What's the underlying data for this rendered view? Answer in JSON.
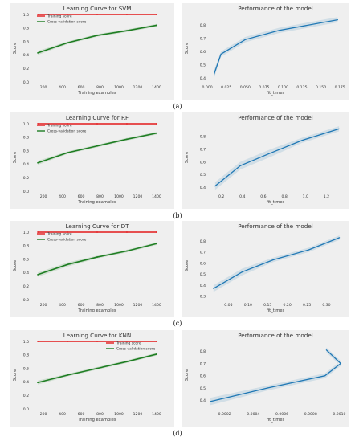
{
  "panels": [
    {
      "caption": "(a)",
      "learning": {
        "type": "line",
        "title": "Learning Curve for SVM",
        "xlabel": "Training examples",
        "ylabel": "Score",
        "xlim": [
          80,
          1460
        ],
        "ylim": [
          0.0,
          1.0
        ],
        "xticks": [
          200,
          400,
          600,
          800,
          1000,
          1200,
          1400
        ],
        "yticks": [
          0.0,
          0.2,
          0.4,
          0.6,
          0.8,
          1.0
        ],
        "legend": "top-left",
        "legend_entries": [
          "Training score",
          "Cross-validation score"
        ],
        "series": [
          {
            "name": "Training score",
            "color": "#e31a1c",
            "x": [
              140,
              455,
              770,
              1085,
              1400
            ],
            "values": [
              1.0,
              1.0,
              1.0,
              1.0,
              1.0
            ],
            "band": [
              0.0,
              0.0,
              0.0,
              0.0,
              0.0
            ]
          },
          {
            "name": "Cross-validation score",
            "color": "#1e7d22",
            "x": [
              140,
              455,
              770,
              1085,
              1400
            ],
            "values": [
              0.43,
              0.58,
              0.69,
              0.76,
              0.84
            ],
            "band": [
              0.03,
              0.02,
              0.02,
              0.02,
              0.02
            ]
          }
        ]
      },
      "performance": {
        "type": "line",
        "title": "Performance of the model",
        "xlabel": "fit_times",
        "ylabel": "Score",
        "xlim": [
          0.002,
          0.178
        ],
        "ylim": [
          0.37,
          0.88
        ],
        "xticks": [
          0.0,
          0.025,
          0.05,
          0.075,
          0.1,
          0.125,
          0.15,
          0.175
        ],
        "xtick_labels": [
          "0.000",
          "0.025",
          "0.050",
          "0.075",
          "0.100",
          "0.125",
          "0.150",
          "0.175"
        ],
        "yticks": [
          0.4,
          0.5,
          0.6,
          0.7,
          0.8
        ],
        "series": [
          {
            "color": "#1f77b4",
            "x": [
              0.009,
              0.018,
              0.05,
              0.095,
              0.172
            ],
            "values": [
              0.43,
              0.58,
              0.69,
              0.76,
              0.84
            ],
            "band": [
              0.03,
              0.02,
              0.02,
              0.02,
              0.02
            ]
          }
        ]
      }
    },
    {
      "caption": "(b)",
      "learning": {
        "type": "line",
        "title": "Learning Curve for RF",
        "xlabel": "Training examples",
        "ylabel": "Score",
        "xlim": [
          80,
          1460
        ],
        "ylim": [
          0.0,
          1.0
        ],
        "xticks": [
          200,
          400,
          600,
          800,
          1000,
          1200,
          1400
        ],
        "yticks": [
          0.0,
          0.2,
          0.4,
          0.6,
          0.8,
          1.0
        ],
        "legend": "top-left",
        "legend_entries": [
          "Training score",
          "Cross-validation score"
        ],
        "series": [
          {
            "name": "Training score",
            "color": "#e31a1c",
            "x": [
              140,
              455,
              770,
              1085,
              1400
            ],
            "values": [
              1.0,
              1.0,
              1.0,
              1.0,
              1.0
            ],
            "band": [
              0.0,
              0.0,
              0.0,
              0.0,
              0.0
            ]
          },
          {
            "name": "Cross-validation score",
            "color": "#1e7d22",
            "x": [
              140,
              455,
              770,
              1085,
              1400
            ],
            "values": [
              0.42,
              0.57,
              0.67,
              0.77,
              0.86
            ],
            "band": [
              0.03,
              0.02,
              0.02,
              0.02,
              0.02
            ]
          }
        ]
      },
      "performance": {
        "type": "line",
        "title": "Performance of the model",
        "xlabel": "fit_times",
        "ylabel": "Score",
        "xlim": [
          0.08,
          1.35
        ],
        "ylim": [
          0.37,
          0.9
        ],
        "xticks": [
          0.2,
          0.4,
          0.6,
          0.8,
          1.0,
          1.2
        ],
        "xtick_labels": [
          "0.2",
          "0.4",
          "0.6",
          "0.8",
          "1.0",
          "1.2"
        ],
        "yticks": [
          0.4,
          0.5,
          0.6,
          0.7,
          0.8
        ],
        "series": [
          {
            "color": "#1f77b4",
            "x": [
              0.14,
              0.38,
              0.67,
              0.97,
              1.32
            ],
            "values": [
              0.41,
              0.57,
              0.67,
              0.77,
              0.86
            ],
            "band": [
              0.03,
              0.03,
              0.03,
              0.02,
              0.02
            ]
          }
        ]
      }
    },
    {
      "caption": "(c)",
      "learning": {
        "type": "line",
        "title": "Learning Curve for DT",
        "xlabel": "Training examples",
        "ylabel": "Score",
        "xlim": [
          80,
          1460
        ],
        "ylim": [
          0.0,
          1.0
        ],
        "xticks": [
          200,
          400,
          600,
          800,
          1000,
          1200,
          1400
        ],
        "yticks": [
          0.0,
          0.2,
          0.4,
          0.6,
          0.8,
          1.0
        ],
        "legend": "top-left",
        "legend_entries": [
          "Training score",
          "Cross-validation score"
        ],
        "series": [
          {
            "name": "Training score",
            "color": "#e31a1c",
            "x": [
              140,
              455,
              770,
              1085,
              1400
            ],
            "values": [
              1.0,
              1.0,
              1.0,
              1.0,
              1.0
            ],
            "band": [
              0.0,
              0.0,
              0.0,
              0.0,
              0.0
            ]
          },
          {
            "name": "Cross-validation score",
            "color": "#1e7d22",
            "x": [
              140,
              455,
              770,
              1085,
              1400
            ],
            "values": [
              0.37,
              0.52,
              0.63,
              0.72,
              0.83
            ],
            "band": [
              0.03,
              0.03,
              0.02,
              0.02,
              0.02
            ]
          }
        ]
      },
      "performance": {
        "type": "line",
        "title": "Performance of the model",
        "xlabel": "fit_times",
        "ylabel": "Score",
        "xlim": [
          0.0,
          0.34
        ],
        "ylim": [
          0.27,
          0.88
        ],
        "xticks": [
          0.05,
          0.1,
          0.15,
          0.2,
          0.25,
          0.3
        ],
        "xtick_labels": [
          "0.05",
          "0.10",
          "0.15",
          "0.20",
          "0.25",
          "0.30"
        ],
        "yticks": [
          0.3,
          0.4,
          0.5,
          0.6,
          0.7,
          0.8
        ],
        "series": [
          {
            "color": "#1f77b4",
            "x": [
              0.012,
              0.085,
              0.165,
              0.255,
              0.333
            ],
            "values": [
              0.37,
              0.52,
              0.63,
              0.72,
              0.83
            ],
            "band": [
              0.03,
              0.03,
              0.02,
              0.02,
              0.02
            ]
          }
        ]
      }
    },
    {
      "caption": "(d)",
      "learning": {
        "type": "line",
        "title": "Learning Curve for KNN",
        "xlabel": "Training examples",
        "ylabel": "Score",
        "xlim": [
          80,
          1460
        ],
        "ylim": [
          0.0,
          1.0
        ],
        "xticks": [
          200,
          400,
          600,
          800,
          1000,
          1200,
          1400
        ],
        "yticks": [
          0.0,
          0.2,
          0.4,
          0.6,
          0.8,
          1.0
        ],
        "legend": "top-right",
        "legend_entries": [
          "Training score",
          "Cross-validation score"
        ],
        "series": [
          {
            "name": "Training score",
            "color": "#e31a1c",
            "x": [
              140,
              455,
              770,
              1085,
              1400
            ],
            "values": [
              1.0,
              1.0,
              1.0,
              1.0,
              1.0
            ],
            "band": [
              0.0,
              0.0,
              0.0,
              0.0,
              0.0
            ]
          },
          {
            "name": "Cross-validation score",
            "color": "#1e7d22",
            "x": [
              140,
              455,
              770,
              1085,
              1400
            ],
            "values": [
              0.39,
              0.5,
              0.6,
              0.7,
              0.81
            ],
            "band": [
              0.03,
              0.02,
              0.02,
              0.02,
              0.02
            ]
          }
        ]
      },
      "performance": {
        "type": "line",
        "title": "Performance of the model",
        "xlabel": "fit_times",
        "ylabel": "Score",
        "xlim": [
          9e-05,
          0.00102
        ],
        "ylim": [
          0.33,
          0.88
        ],
        "xticks": [
          0.0002,
          0.0004,
          0.0006,
          0.0008,
          0.001
        ],
        "xtick_labels": [
          "0.0002",
          "0.0004",
          "0.0006",
          "0.0008",
          "0.0010"
        ],
        "yticks": [
          0.4,
          0.5,
          0.6,
          0.7,
          0.8
        ],
        "series": [
          {
            "color": "#1f77b4",
            "x": [
              0.0001,
              0.0005,
              0.0009,
              0.00101,
              0.00091
            ],
            "values": [
              0.39,
              0.5,
              0.6,
              0.7,
              0.81
            ],
            "band": [
              0.03,
              0.02,
              0.02,
              0.02,
              0.02
            ]
          }
        ]
      }
    }
  ]
}
